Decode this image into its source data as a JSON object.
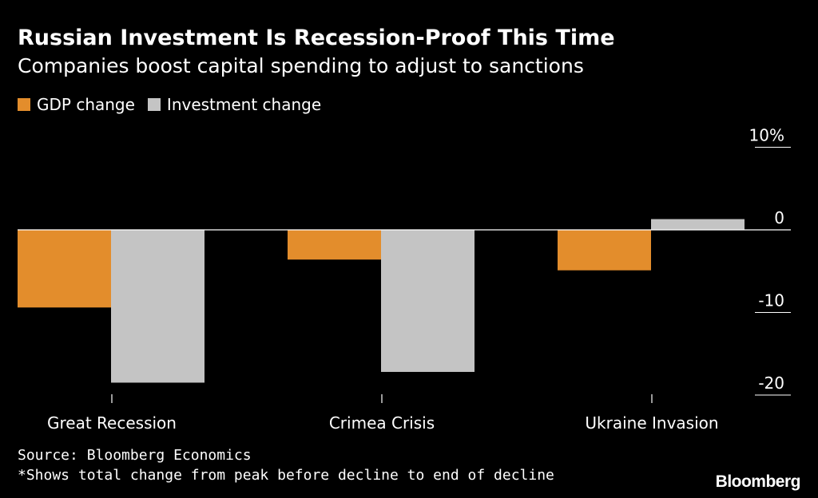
{
  "header": {
    "title": "Russian Investment Is Recession-Proof This Time",
    "subtitle": "Companies boost capital spending to adjust to sanctions"
  },
  "legend": {
    "gdp_label": "GDP change",
    "investment_label": "Investment change"
  },
  "footer": {
    "source": "Source: Bloomberg Economics",
    "note": "*Shows total change from peak before decline to end of decline",
    "brand": "Bloomberg"
  },
  "colors": {
    "background": "#000000",
    "gdp": "#e38d2c",
    "investment": "#c4c4c4",
    "axis": "#ffffff",
    "text": "#ffffff"
  },
  "chart_data": {
    "type": "bar",
    "title": "Russian Investment Is Recession-Proof This Time",
    "subtitle": "Companies boost capital spending to adjust to sanctions",
    "categories": [
      "Great Recession",
      "Crimea Crisis",
      "Ukraine Invasion"
    ],
    "series": [
      {
        "name": "GDP change",
        "values": [
          -9.4,
          -3.6,
          -4.9
        ]
      },
      {
        "name": "Investment change",
        "values": [
          -18.5,
          -17.2,
          1.3
        ]
      }
    ],
    "y_ticks": [
      {
        "value": 10,
        "label": "10%"
      },
      {
        "value": 0,
        "label": "0"
      },
      {
        "value": -10,
        "label": "-10"
      },
      {
        "value": -20,
        "label": "-20"
      }
    ],
    "ylim": [
      -20,
      10
    ],
    "xlabel": "",
    "ylabel": "",
    "grid": false,
    "legend_position": "top-left"
  }
}
